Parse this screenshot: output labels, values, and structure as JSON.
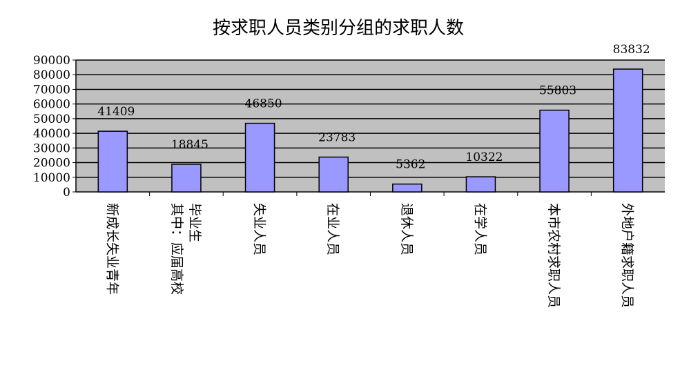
{
  "colors": {
    "plot_bg": "#c0c0c0",
    "bar": "#9999ff",
    "bar_edge": "#000000",
    "grid": "#000000"
  },
  "chart_data": {
    "type": "bar",
    "title": "按求职人员类别分组的求职人数",
    "xlabel": "",
    "ylabel": "",
    "ylim": [
      0,
      90000
    ],
    "yticks": [
      "0",
      "10000",
      "20000",
      "30000",
      "40000",
      "50000",
      "60000",
      "70000",
      "80000",
      "90000"
    ],
    "grid": true,
    "legend": "none",
    "categories": [
      [
        "新成长失业青年"
      ],
      [
        "其中：应届高校",
        "毕业生"
      ],
      [
        "失业人员"
      ],
      [
        "在业人员"
      ],
      [
        "退休人员"
      ],
      [
        "在学人员"
      ],
      [
        "本市农村求职人员"
      ],
      [
        "外地户籍求职人员"
      ]
    ],
    "values": [
      41409,
      18845,
      46850,
      23783,
      5362,
      10322,
      55803,
      83832
    ],
    "data_labels": [
      "41409",
      "18845",
      "46850",
      "23783",
      "5362",
      "10322",
      "55803",
      "83832"
    ]
  }
}
